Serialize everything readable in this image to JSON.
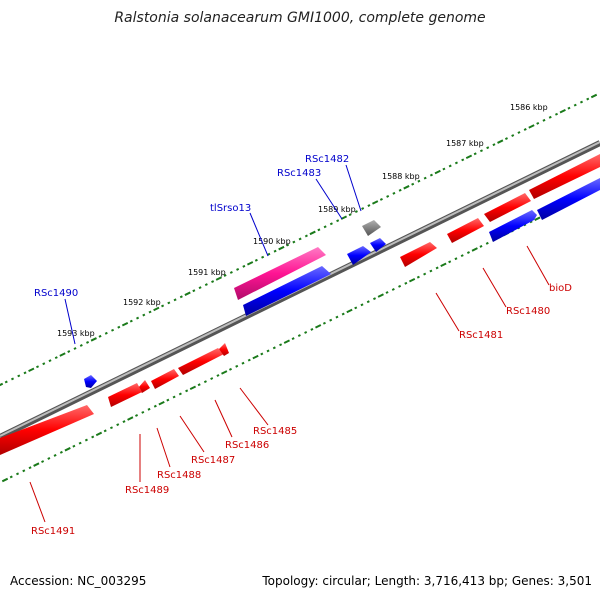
{
  "title": "Ralstonia solanacearum GMI1000, complete genome",
  "footer": {
    "accession": "Accession: NC_003295",
    "summary": "Topology: circular; Length: 3,716,413 bp; Genes: 3,501"
  },
  "ruler_labels": [
    "1586 kbp",
    "1587 kbp",
    "1588 kbp",
    "1589 kbp",
    "1590 kbp",
    "1591 kbp",
    "1592 kbp",
    "1593 kbp"
  ],
  "gene_labels": {
    "top_blue": [
      "RSc1482",
      "RSc1483",
      "tlSrso13",
      "RSc1490"
    ],
    "bottom_red": [
      "bioD",
      "RSc1480",
      "RSc1481",
      "RSc1485",
      "RSc1486",
      "RSc1487",
      "RSc1488",
      "RSc1489",
      "RSc1491"
    ]
  },
  "colors": {
    "forward_gene": "#ff0000",
    "reverse_gene": "#0000ff",
    "pseudogene": "#808080",
    "rna_gene": "#ff1493",
    "backbone": "#888888",
    "ruler_tick": "#1a7a1a",
    "label_blue": "#0000cc",
    "label_red": "#cc0000"
  }
}
